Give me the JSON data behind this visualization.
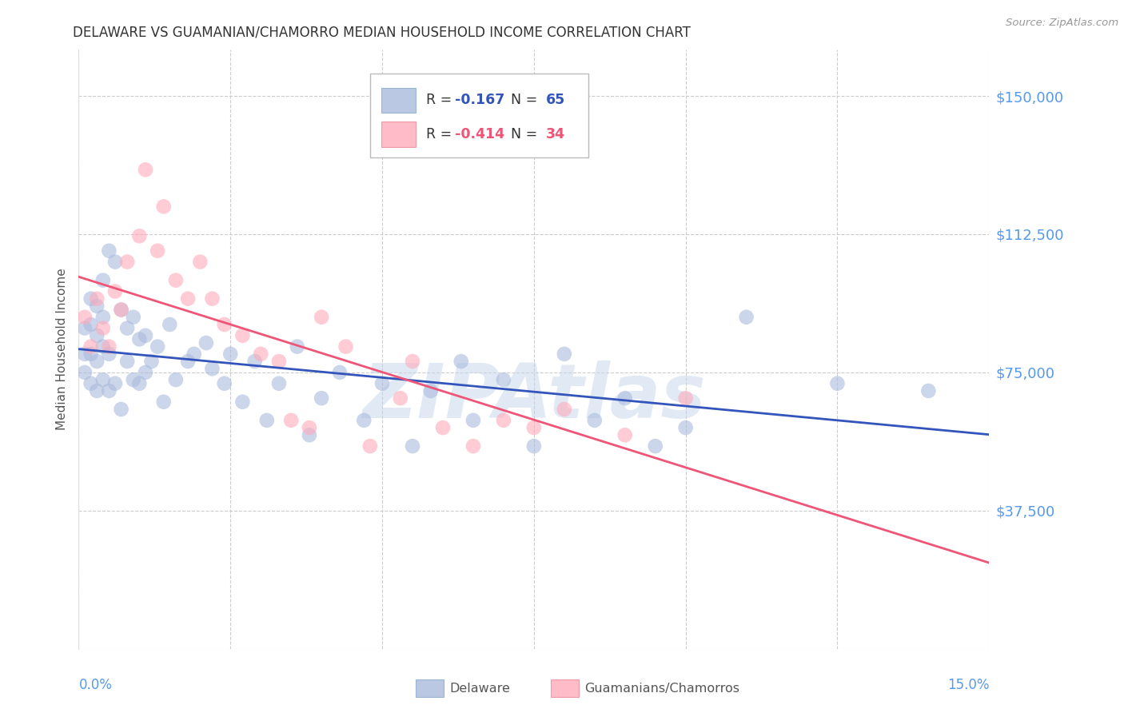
{
  "title": "DELAWARE VS GUAMANIAN/CHAMORRO MEDIAN HOUSEHOLD INCOME CORRELATION CHART",
  "source": "Source: ZipAtlas.com",
  "ylabel": "Median Household Income",
  "ytick_values": [
    0,
    37500,
    75000,
    112500,
    150000
  ],
  "ytick_labels": [
    "",
    "$37,500",
    "$75,000",
    "$112,500",
    "$150,000"
  ],
  "xmin": 0.0,
  "xmax": 0.15,
  "ymin": 0,
  "ymax": 162500,
  "legend1_r": "R = ",
  "legend1_rv": "-0.167",
  "legend1_n": "N = ",
  "legend1_nv": "65",
  "legend2_r": "R = ",
  "legend2_rv": "-0.414",
  "legend2_n": "N = ",
  "legend2_nv": "34",
  "del_scatter_color": "#aabbdd",
  "gua_scatter_color": "#ffaabb",
  "del_line_color": "#3355bb",
  "gua_line_color": "#ee5577",
  "watermark_text": "ZIPAtlas",
  "watermark_color": "#c8d8eb",
  "bg_color": "#ffffff",
  "grid_color": "#cccccc",
  "ytick_color": "#5599ee",
  "xtick_color": "#5599ee",
  "title_color": "#333333",
  "source_color": "#999999",
  "ylabel_color": "#555555",
  "bottom_legend_del": "Delaware",
  "bottom_legend_gua": "Guamanians/Chamorros",
  "delaware_x": [
    0.001,
    0.001,
    0.001,
    0.002,
    0.002,
    0.002,
    0.002,
    0.003,
    0.003,
    0.003,
    0.003,
    0.004,
    0.004,
    0.004,
    0.004,
    0.005,
    0.005,
    0.005,
    0.006,
    0.006,
    0.007,
    0.007,
    0.008,
    0.008,
    0.009,
    0.009,
    0.01,
    0.01,
    0.011,
    0.011,
    0.012,
    0.013,
    0.014,
    0.015,
    0.016,
    0.018,
    0.019,
    0.021,
    0.022,
    0.024,
    0.025,
    0.027,
    0.029,
    0.031,
    0.033,
    0.036,
    0.038,
    0.04,
    0.043,
    0.047,
    0.05,
    0.055,
    0.058,
    0.063,
    0.065,
    0.07,
    0.075,
    0.08,
    0.085,
    0.09,
    0.095,
    0.1,
    0.11,
    0.125,
    0.14
  ],
  "delaware_y": [
    87000,
    80000,
    75000,
    95000,
    88000,
    80000,
    72000,
    93000,
    85000,
    78000,
    70000,
    100000,
    90000,
    82000,
    73000,
    108000,
    80000,
    70000,
    105000,
    72000,
    92000,
    65000,
    87000,
    78000,
    90000,
    73000,
    84000,
    72000,
    85000,
    75000,
    78000,
    82000,
    67000,
    88000,
    73000,
    78000,
    80000,
    83000,
    76000,
    72000,
    80000,
    67000,
    78000,
    62000,
    72000,
    82000,
    58000,
    68000,
    75000,
    62000,
    72000,
    55000,
    70000,
    78000,
    62000,
    73000,
    55000,
    80000,
    62000,
    68000,
    55000,
    60000,
    90000,
    72000,
    70000
  ],
  "guam_x": [
    0.001,
    0.002,
    0.003,
    0.004,
    0.005,
    0.006,
    0.007,
    0.008,
    0.01,
    0.011,
    0.013,
    0.014,
    0.016,
    0.018,
    0.02,
    0.022,
    0.024,
    0.027,
    0.03,
    0.033,
    0.035,
    0.038,
    0.04,
    0.044,
    0.048,
    0.053,
    0.055,
    0.06,
    0.065,
    0.07,
    0.075,
    0.08,
    0.09,
    0.1
  ],
  "guam_y": [
    90000,
    82000,
    95000,
    87000,
    82000,
    97000,
    92000,
    105000,
    112000,
    130000,
    108000,
    120000,
    100000,
    95000,
    105000,
    95000,
    88000,
    85000,
    80000,
    78000,
    62000,
    60000,
    90000,
    82000,
    55000,
    68000,
    78000,
    60000,
    55000,
    62000,
    60000,
    65000,
    58000,
    68000
  ]
}
